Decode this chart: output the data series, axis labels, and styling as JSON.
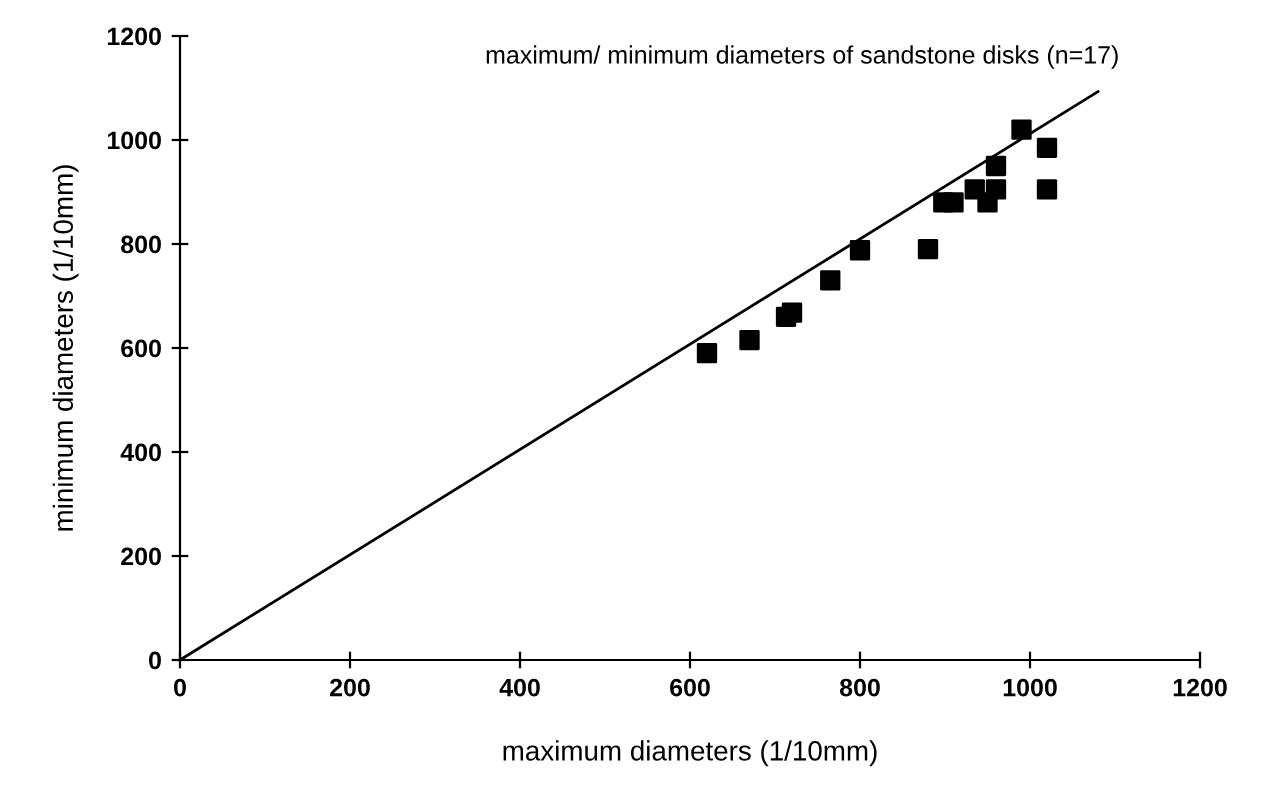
{
  "chart_data": {
    "type": "scatter",
    "title": "maximum/ minimum diameters of sandstone disks (n=17)",
    "xlabel": "maximum diameters (1/10mm)",
    "ylabel": "minimum diameters (1/10mm)",
    "xlim": [
      0,
      1200
    ],
    "ylim": [
      0,
      1200
    ],
    "xticks": [
      0,
      200,
      400,
      600,
      800,
      1000,
      1200
    ],
    "yticks": [
      0,
      200,
      400,
      600,
      800,
      1000,
      1200
    ],
    "grid": false,
    "legend": false,
    "series": [
      {
        "color": "#000000",
        "marker": "square",
        "x": [
          620,
          670,
          713,
          720,
          765,
          800,
          880,
          898,
          910,
          935,
          950,
          960,
          960,
          990,
          1020,
          1020
        ],
        "values": [
          590,
          615,
          660,
          668,
          730,
          788,
          790,
          880,
          880,
          905,
          880,
          950,
          905,
          1020,
          985,
          905
        ]
      },
      {
        "type": "line",
        "color": "#000000",
        "line_style": "solid",
        "x": [
          0,
          1080
        ],
        "values": [
          0,
          1093
        ]
      }
    ]
  }
}
